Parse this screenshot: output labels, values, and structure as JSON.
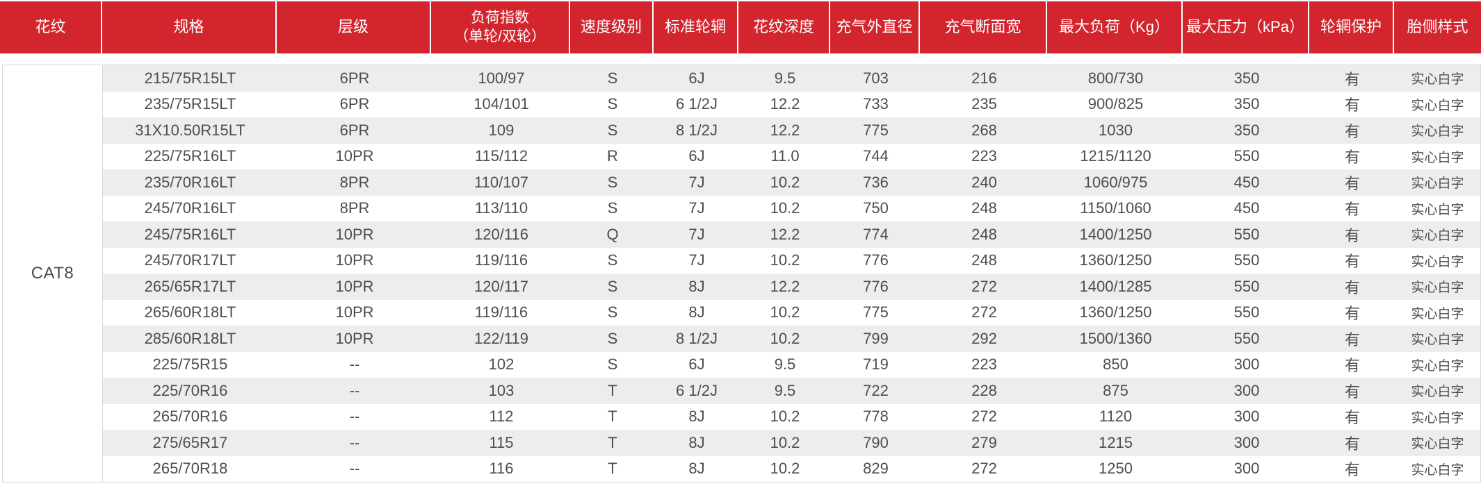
{
  "colors": {
    "header_bg": "#d2252d",
    "header_text": "#ffffff",
    "row_alt_bg": "#ededee",
    "row_bg": "#ffffff",
    "body_text": "#4d4d4d",
    "border": "#d8d8d8"
  },
  "table": {
    "pattern_label": "CAT8",
    "columns": [
      {
        "label": "花纹"
      },
      {
        "label": "规格"
      },
      {
        "label": "层级"
      },
      {
        "label": "负荷指数",
        "label2": "（单轮/双轮）"
      },
      {
        "label": "速度级别"
      },
      {
        "label": "标准轮辋"
      },
      {
        "label": "花纹深度"
      },
      {
        "label": "充气外直径"
      },
      {
        "label": "充气断面宽"
      },
      {
        "label": "最大负荷（Kg）"
      },
      {
        "label": "最大压力（kPa）"
      },
      {
        "label": "轮辋保护"
      },
      {
        "label": "胎侧样式"
      }
    ],
    "column_keys": [
      "spec",
      "ply-rating",
      "load-index",
      "speed-rating",
      "standard-rim",
      "tread-depth",
      "inflated-diameter",
      "inflated-section-width",
      "max-load",
      "max-pressure",
      "rim-protection",
      "sidewall-style"
    ],
    "rows": [
      [
        "215/75R15LT",
        "6PR",
        "100/97",
        "S",
        "6J",
        "9.5",
        "703",
        "216",
        "800/730",
        "350",
        "有",
        "实心白字"
      ],
      [
        "235/75R15LT",
        "6PR",
        "104/101",
        "S",
        "6 1/2J",
        "12.2",
        "733",
        "235",
        "900/825",
        "350",
        "有",
        "实心白字"
      ],
      [
        "31X10.50R15LT",
        "6PR",
        "109",
        "S",
        "8 1/2J",
        "12.2",
        "775",
        "268",
        "1030",
        "350",
        "有",
        "实心白字"
      ],
      [
        "225/75R16LT",
        "10PR",
        "115/112",
        "R",
        "6J",
        "11.0",
        "744",
        "223",
        "1215/1120",
        "550",
        "有",
        "实心白字"
      ],
      [
        "235/70R16LT",
        "8PR",
        "110/107",
        "S",
        "7J",
        "10.2",
        "736",
        "240",
        "1060/975",
        "450",
        "有",
        "实心白字"
      ],
      [
        "245/70R16LT",
        "8PR",
        "113/110",
        "S",
        "7J",
        "10.2",
        "750",
        "248",
        "1150/1060",
        "450",
        "有",
        "实心白字"
      ],
      [
        "245/75R16LT",
        "10PR",
        "120/116",
        "Q",
        "7J",
        "12.2",
        "774",
        "248",
        "1400/1250",
        "550",
        "有",
        "实心白字"
      ],
      [
        "245/70R17LT",
        "10PR",
        "119/116",
        "S",
        "7J",
        "10.2",
        "776",
        "248",
        "1360/1250",
        "550",
        "有",
        "实心白字"
      ],
      [
        "265/65R17LT",
        "10PR",
        "120/117",
        "S",
        "8J",
        "12.2",
        "776",
        "272",
        "1400/1285",
        "550",
        "有",
        "实心白字"
      ],
      [
        "265/60R18LT",
        "10PR",
        "119/116",
        "S",
        "8J",
        "10.2",
        "775",
        "272",
        "1360/1250",
        "550",
        "有",
        "实心白字"
      ],
      [
        "285/60R18LT",
        "10PR",
        "122/119",
        "S",
        "8 1/2J",
        "10.2",
        "799",
        "292",
        "1500/1360",
        "550",
        "有",
        "实心白字"
      ],
      [
        "225/75R15",
        "--",
        "102",
        "S",
        "6J",
        "9.5",
        "719",
        "223",
        "850",
        "300",
        "有",
        "实心白字"
      ],
      [
        "225/70R16",
        "--",
        "103",
        "T",
        "6 1/2J",
        "9.5",
        "722",
        "228",
        "875",
        "300",
        "有",
        "实心白字"
      ],
      [
        "265/70R16",
        "--",
        "112",
        "T",
        "8J",
        "10.2",
        "778",
        "272",
        "1120",
        "300",
        "有",
        "实心白字"
      ],
      [
        "275/65R17",
        "--",
        "115",
        "T",
        "8J",
        "10.2",
        "790",
        "279",
        "1215",
        "300",
        "有",
        "实心白字"
      ],
      [
        "265/70R18",
        "--",
        "116",
        "T",
        "8J",
        "10.2",
        "829",
        "272",
        "1250",
        "300",
        "有",
        "实心白字"
      ]
    ]
  }
}
